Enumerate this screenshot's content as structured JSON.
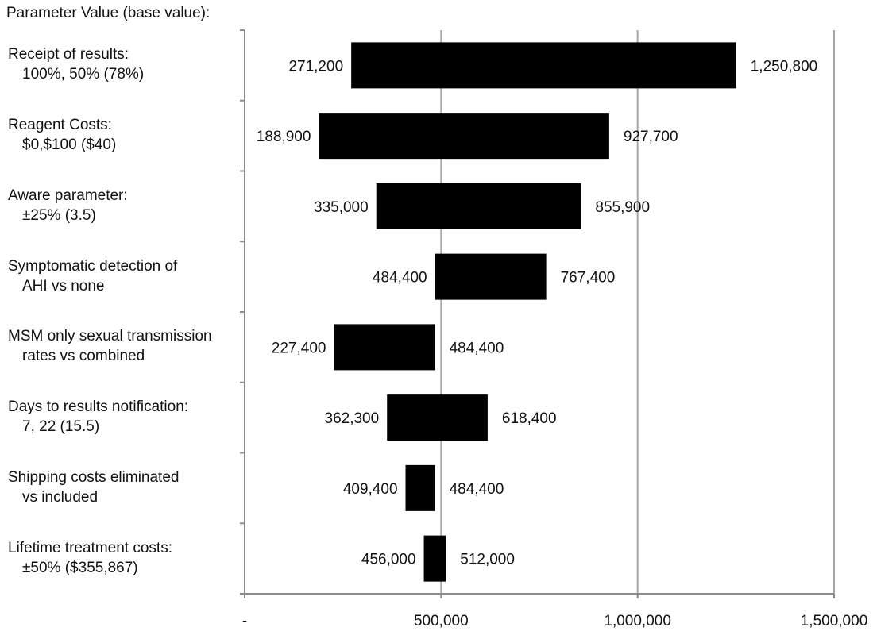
{
  "chart_data": {
    "type": "bar",
    "subtype": "tornado",
    "orientation": "horizontal",
    "title": "",
    "ylabel": "Parameter Value (base value):",
    "xlabel": "",
    "xlim": [
      0,
      1500000
    ],
    "x_ticks": [
      0,
      500000,
      1000000,
      1500000
    ],
    "x_tick_labels": [
      "-",
      "500,000",
      "1,000,000",
      "1,500,000"
    ],
    "base_value": 484400,
    "vertical_gridlines": true,
    "legend": "none",
    "bar_color": "#000000",
    "parameters": [
      {
        "line1": "Receipt of results:",
        "line2": "100%, 50% (78%)",
        "low": 271200,
        "high": 1250800,
        "low_label": "271,200",
        "high_label": "1,250,800"
      },
      {
        "line1": "Reagent Costs:",
        "line2": "$0,$100 ($40)",
        "low": 188900,
        "high": 927700,
        "low_label": "188,900",
        "high_label": "927,700"
      },
      {
        "line1": "Aware parameter:",
        "line2": "±25% (3.5)",
        "low": 335000,
        "high": 855900,
        "low_label": "335,000",
        "high_label": "855,900"
      },
      {
        "line1": "Symptomatic  detection of",
        "line2": "AHI vs none",
        "low": 484400,
        "high": 767400,
        "low_label": "484,400",
        "high_label": "767,400"
      },
      {
        "line1": "MSM only sexual transmission",
        "line2": "rates vs combined",
        "low": 227400,
        "high": 484400,
        "low_label": "227,400",
        "high_label": "484,400"
      },
      {
        "line1": "Days to results notification:",
        "line2": "7, 22 (15.5)",
        "low": 362300,
        "high": 618400,
        "low_label": "362,300",
        "high_label": "618,400"
      },
      {
        "line1": "Shipping costs eliminated",
        "line2": "vs included",
        "low": 409400,
        "high": 484400,
        "low_label": "409,400",
        "high_label": "484,400"
      },
      {
        "line1": "Lifetime treatment  costs:",
        "line2": "±50% ($355,867)",
        "low": 456000,
        "high": 512000,
        "low_label": "456,000",
        "high_label": "512,000"
      }
    ]
  }
}
